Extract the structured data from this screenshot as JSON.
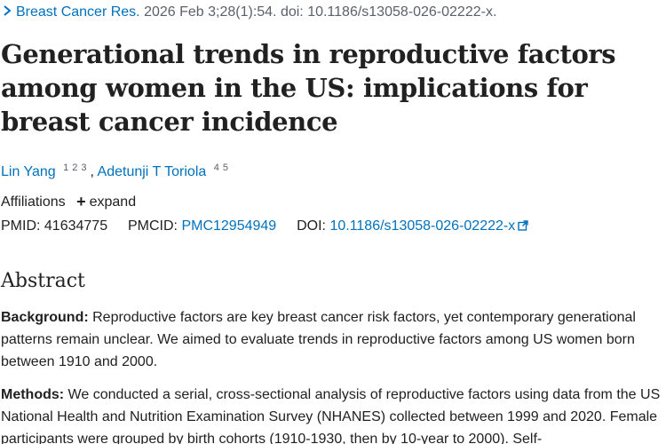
{
  "citation": {
    "journal": "Breast Cancer Res.",
    "details": "2026 Feb 3;28(1):54. doi: 10.1186/s13058-026-02222-x."
  },
  "title": "Generational trends in reproductive factors among women in the US: implications for breast cancer incidence",
  "authors": [
    {
      "name": "Lin Yang",
      "affiliations": [
        "1",
        "2",
        "3"
      ]
    },
    {
      "name": "Adetunji T Toriola",
      "affiliations": [
        "4",
        "5"
      ]
    }
  ],
  "author_separator": ",",
  "affiliations": {
    "label": "Affiliations",
    "expand_label": "expand"
  },
  "identifiers": {
    "pmid_label": "PMID:",
    "pmid": "41634775",
    "pmcid_label": "PMCID:",
    "pmcid": "PMC12954949",
    "doi_label": "DOI:",
    "doi": "10.1186/s13058-026-02222-x"
  },
  "abstract": {
    "heading": "Abstract",
    "background_label": "Background:",
    "background_text": " Reproductive factors are key breast cancer risk factors, yet contemporary generational patterns remain unclear. We aimed to evaluate trends in reproductive factors among US women born between 1910 and 2000.",
    "methods_label": "Methods:",
    "methods_text": " We conducted a serial, cross-sectional analysis of reproductive factors using data from the US National Health and Nutrition Examination Survey (NHANES) collected between 1999 and 2020. Female participants were grouped by birth cohorts (1910-1930, then by 10-year to 2000). Self-"
  },
  "icons": {
    "chevron": "chevron-right-icon",
    "plus": "plus-icon",
    "external": "external-link-icon"
  },
  "colors": {
    "link": "#0071bc",
    "text": "#212121",
    "muted": "#5b616b"
  }
}
